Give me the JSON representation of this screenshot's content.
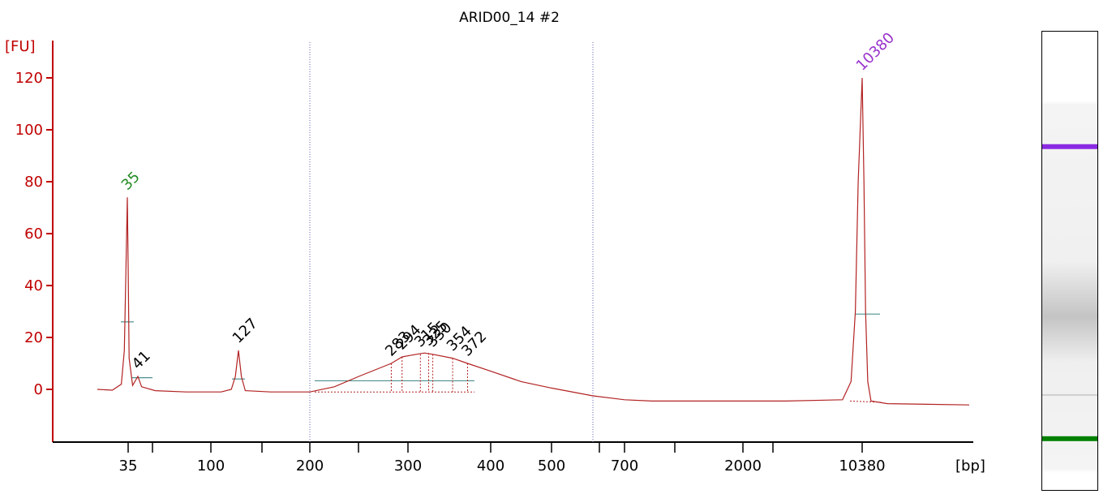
{
  "chart_data": {
    "type": "line",
    "title": "ARID00_14 #2",
    "ylabel": "[FU]",
    "xlabel": "[bp]",
    "ylim": [
      -18,
      130
    ],
    "y_ticks": [
      0,
      20,
      40,
      60,
      80,
      100,
      120
    ],
    "x_ticks": [
      "35",
      "",
      "100",
      "",
      "200",
      "",
      "300",
      "400",
      "500",
      "",
      "700",
      "",
      "2000",
      "",
      "10380"
    ],
    "region_markers_bp": [
      200,
      600
    ],
    "series": [
      {
        "color": "#b22222",
        "points": [
          [
            25,
            0.0
          ],
          [
            30,
            -0.3
          ],
          [
            33,
            2.0
          ],
          [
            34,
            15.0
          ],
          [
            34.5,
            45.0
          ],
          [
            35,
            74.0
          ],
          [
            35.5,
            45.0
          ],
          [
            36,
            12.0
          ],
          [
            38,
            1.5
          ],
          [
            41,
            5.0
          ],
          [
            44,
            1.0
          ],
          [
            55,
            -0.5
          ],
          [
            80,
            -1.0
          ],
          [
            110,
            -1.0
          ],
          [
            120,
            0.0
          ],
          [
            124,
            5.0
          ],
          [
            127,
            15.0
          ],
          [
            130,
            5.0
          ],
          [
            134,
            -0.5
          ],
          [
            160,
            -1.0
          ],
          [
            200,
            -1.0
          ],
          [
            225,
            1.0
          ],
          [
            250,
            5.0
          ],
          [
            283,
            10.0
          ],
          [
            294,
            12.5
          ],
          [
            310,
            13.5
          ],
          [
            320,
            14.0
          ],
          [
            330,
            13.5
          ],
          [
            354,
            12.0
          ],
          [
            372,
            10.0
          ],
          [
            400,
            7.0
          ],
          [
            450,
            3.0
          ],
          [
            500,
            0.5
          ],
          [
            600,
            -2.5
          ],
          [
            700,
            -4.0
          ],
          [
            1000,
            -4.5
          ],
          [
            2000,
            -4.5
          ],
          [
            5000,
            -4.5
          ],
          [
            9000,
            -4.0
          ],
          [
            9600,
            3.0
          ],
          [
            9900,
            30.0
          ],
          [
            10100,
            80.0
          ],
          [
            10380,
            120.0
          ],
          [
            10700,
            80.0
          ],
          [
            11000,
            30.0
          ],
          [
            11400,
            3.0
          ],
          [
            12000,
            -4.5
          ],
          [
            15000,
            -5.5
          ],
          [
            30000,
            -6.0
          ]
        ]
      }
    ],
    "peaks": [
      {
        "label": "35",
        "bp": 35,
        "fu": 74,
        "color": "#228b22"
      },
      {
        "label": "41",
        "bp": 41,
        "fu": 5,
        "color": "#000000"
      },
      {
        "label": "127",
        "bp": 127,
        "fu": 15,
        "color": "#000000"
      },
      {
        "label": "283",
        "bp": 283,
        "fu": 10,
        "color": "#000000"
      },
      {
        "label": "294",
        "bp": 294,
        "fu": 12.5,
        "color": "#000000"
      },
      {
        "label": "315",
        "bp": 315,
        "fu": 13.5,
        "color": "#000000"
      },
      {
        "label": "325",
        "bp": 325,
        "fu": 14,
        "color": "#000000"
      },
      {
        "label": "330",
        "bp": 330,
        "fu": 13.5,
        "color": "#000000"
      },
      {
        "label": "354",
        "bp": 354,
        "fu": 12,
        "color": "#000000"
      },
      {
        "label": "372",
        "bp": 372,
        "fu": 10,
        "color": "#000000"
      },
      {
        "label": "10380",
        "bp": 10380,
        "fu": 120,
        "color": "#9932cc"
      }
    ]
  },
  "gel": {
    "bands": [
      {
        "name": "upper-marker",
        "color": "#8a2be2",
        "position": 0.25
      },
      {
        "name": "smear",
        "color": "#c8c8c8",
        "position": 0.62
      },
      {
        "name": "faint-band",
        "color": "#cfcfcf",
        "position": 0.79
      },
      {
        "name": "lower-marker",
        "color": "#008000",
        "position": 0.885
      }
    ]
  }
}
